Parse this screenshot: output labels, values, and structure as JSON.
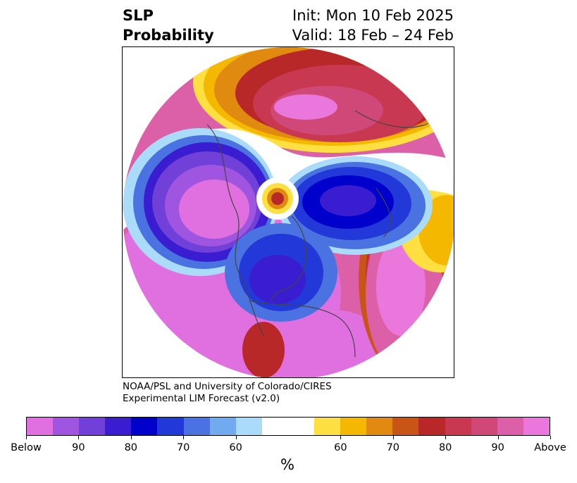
{
  "title": {
    "left_line1": "SLP",
    "left_line2": "Probability",
    "right_line1": "Init: Mon 10 Feb 2025",
    "right_line2": "Valid: 18 Feb – 24 Feb"
  },
  "credit": {
    "line1": "NOAA/PSL and University of Colorado/CIRES",
    "line2": "Experimental LIM Forecast (v2.0)"
  },
  "colorbar": {
    "colors": [
      "#e070e0",
      "#a055e0",
      "#7040d8",
      "#3a1dd0",
      "#0000cc",
      "#2238d8",
      "#4a72e0",
      "#72aaf0",
      "#aadcfa",
      "#ffffff",
      "#ffe040",
      "#f5b800",
      "#e08a10",
      "#c85418",
      "#b82828",
      "#c83850",
      "#d04878",
      "#dc60a8",
      "#ea78dc"
    ],
    "tick_labels": [
      "Below",
      "90",
      "80",
      "70",
      "60",
      "60",
      "70",
      "80",
      "90",
      "Above"
    ],
    "unit_label": "%"
  }
}
